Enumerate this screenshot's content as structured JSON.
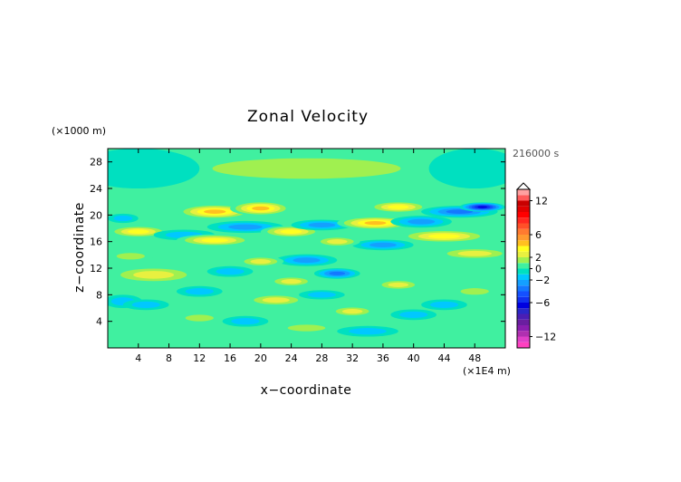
{
  "chart_data": {
    "type": "heatmap",
    "title": "Zonal Velocity",
    "xlabel": "x−coordinate",
    "ylabel": "z−coordinate",
    "x_unit": "(×1E4 m)",
    "y_unit": "(×1000 m)",
    "time_label": "216000 s",
    "xlim": [
      0,
      52
    ],
    "ylim": [
      0,
      30
    ],
    "x_ticks": [
      4,
      8,
      12,
      16,
      20,
      24,
      28,
      32,
      36,
      40,
      44,
      48
    ],
    "y_ticks": [
      4,
      8,
      12,
      16,
      20,
      24,
      28
    ],
    "x_tick_labels": [
      "4",
      "8",
      "12",
      "16",
      "20",
      "24",
      "28",
      "32",
      "36",
      "40",
      "44",
      "48"
    ],
    "y_tick_labels": [
      "4",
      "8",
      "12",
      "16",
      "20",
      "24",
      "28"
    ],
    "colorbar": {
      "range": [
        -14,
        14
      ],
      "tick_values": [
        12,
        6,
        2,
        0,
        -2,
        -6,
        -12
      ],
      "tick_labels": [
        "12",
        "6",
        "2",
        "0",
        "−2",
        "−6",
        "−12"
      ],
      "bounds": [
        -14,
        -13,
        -12,
        -11,
        -10,
        -9,
        -8,
        -7,
        -6,
        -5,
        -4,
        -3,
        -2,
        -1,
        0,
        1,
        2,
        3,
        4,
        5,
        6,
        7,
        8,
        9,
        10,
        11,
        12,
        13,
        14
      ],
      "colors": [
        "#ff40c0",
        "#e040c8",
        "#b030b0",
        "#8a1eb0",
        "#6a1ea0",
        "#4a1eb4",
        "#2a28c8",
        "#0000e0",
        "#1030f0",
        "#1450ff",
        "#1478ff",
        "#14a0ff",
        "#00c8ff",
        "#00e0c0",
        "#40f0a0",
        "#a0f050",
        "#e8f040",
        "#ffff20",
        "#ffc020",
        "#ff9a30",
        "#ff7a30",
        "#ff5028",
        "#ff2820",
        "#ff0000",
        "#e00000",
        "#c80000",
        "#ff5a5a",
        "#ffa0a0"
      ]
    },
    "regions": [
      {
        "x": 26,
        "z": 27,
        "wx": 20,
        "wz": 2.5,
        "v": 1.2
      },
      {
        "x": 4,
        "z": 27,
        "wx": 8,
        "wz": 3,
        "v": -0.8
      },
      {
        "x": 48,
        "z": 27,
        "wx": 6,
        "wz": 3,
        "v": -0.8
      },
      {
        "x": 14,
        "z": 20.5,
        "wx": 5,
        "wz": 1.1,
        "v": 5
      },
      {
        "x": 20,
        "z": 21,
        "wx": 4,
        "wz": 1.1,
        "v": 5
      },
      {
        "x": 4,
        "z": 17.5,
        "wx": 4,
        "wz": 0.9,
        "v": 4
      },
      {
        "x": 2,
        "z": 19.5,
        "wx": 2,
        "wz": 0.7,
        "v": -2
      },
      {
        "x": 10,
        "z": 17,
        "wx": 4,
        "wz": 0.8,
        "v": -2
      },
      {
        "x": 18,
        "z": 18.2,
        "wx": 5,
        "wz": 0.9,
        "v": -3
      },
      {
        "x": 24,
        "z": 17.5,
        "wx": 4,
        "wz": 0.9,
        "v": 4
      },
      {
        "x": 14,
        "z": 16.2,
        "wx": 5,
        "wz": 0.9,
        "v": 4
      },
      {
        "x": 28,
        "z": 18.5,
        "wx": 4,
        "wz": 0.8,
        "v": -3
      },
      {
        "x": 35,
        "z": 18.8,
        "wx": 5,
        "wz": 1.0,
        "v": 5
      },
      {
        "x": 38,
        "z": 21.2,
        "wx": 4,
        "wz": 0.9,
        "v": 4
      },
      {
        "x": 46,
        "z": 20.5,
        "wx": 5,
        "wz": 0.9,
        "v": -4
      },
      {
        "x": 49,
        "z": 21.2,
        "wx": 3,
        "wz": 0.7,
        "v": -7
      },
      {
        "x": 41,
        "z": 19,
        "wx": 4,
        "wz": 0.9,
        "v": -3
      },
      {
        "x": 44,
        "z": 16.8,
        "wx": 6,
        "wz": 1.0,
        "v": 4
      },
      {
        "x": 48,
        "z": 14.2,
        "wx": 5,
        "wz": 0.9,
        "v": 3
      },
      {
        "x": 36,
        "z": 15.5,
        "wx": 4,
        "wz": 0.8,
        "v": -3
      },
      {
        "x": 30,
        "z": 16,
        "wx": 3,
        "wz": 0.8,
        "v": 3
      },
      {
        "x": 6,
        "z": 11,
        "wx": 6,
        "wz": 1.3,
        "v": 2.5
      },
      {
        "x": 3,
        "z": 13.8,
        "wx": 3,
        "wz": 0.8,
        "v": 2
      },
      {
        "x": 2,
        "z": 7,
        "wx": 2.5,
        "wz": 1.0,
        "v": -1.2
      },
      {
        "x": 5,
        "z": 6.5,
        "wx": 3,
        "wz": 0.8,
        "v": -1.2
      },
      {
        "x": 26,
        "z": 13.2,
        "wx": 4,
        "wz": 0.9,
        "v": -3
      },
      {
        "x": 30,
        "z": 11.2,
        "wx": 3,
        "wz": 0.8,
        "v": -4
      },
      {
        "x": 24,
        "z": 10,
        "wx": 3,
        "wz": 0.8,
        "v": 3
      },
      {
        "x": 22,
        "z": 7.2,
        "wx": 4,
        "wz": 0.9,
        "v": 3
      },
      {
        "x": 28,
        "z": 8,
        "wx": 3,
        "wz": 0.7,
        "v": -2
      },
      {
        "x": 32,
        "z": 5.5,
        "wx": 3,
        "wz": 0.8,
        "v": 3
      },
      {
        "x": 38,
        "z": 9.5,
        "wx": 3,
        "wz": 0.8,
        "v": 3
      },
      {
        "x": 40,
        "z": 5,
        "wx": 3,
        "wz": 0.8,
        "v": -1.5
      },
      {
        "x": 44,
        "z": 6.5,
        "wx": 3,
        "wz": 0.8,
        "v": -1.5
      },
      {
        "x": 48,
        "z": 8.5,
        "wx": 3,
        "wz": 0.8,
        "v": 2
      },
      {
        "x": 34,
        "z": 2.5,
        "wx": 4,
        "wz": 0.8,
        "v": -2
      },
      {
        "x": 26,
        "z": 3,
        "wx": 4,
        "wz": 0.8,
        "v": 2
      },
      {
        "x": 18,
        "z": 4,
        "wx": 3,
        "wz": 0.8,
        "v": -1.5
      },
      {
        "x": 20,
        "z": 13,
        "wx": 3,
        "wz": 0.8,
        "v": 2.5
      },
      {
        "x": 16,
        "z": 11.5,
        "wx": 3,
        "wz": 0.8,
        "v": -1.5
      },
      {
        "x": 12,
        "z": 8.5,
        "wx": 3,
        "wz": 0.8,
        "v": -1.2
      },
      {
        "x": 12,
        "z": 4.5,
        "wx": 3,
        "wz": 0.8,
        "v": 1.5
      }
    ]
  }
}
